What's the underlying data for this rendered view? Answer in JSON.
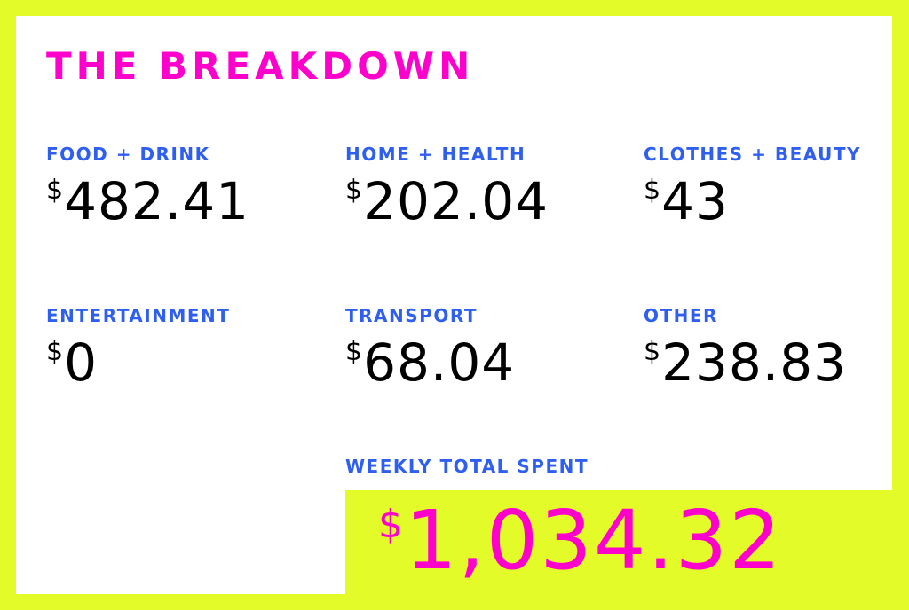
{
  "title": "THE BREAKDOWN",
  "currency_symbol": "$",
  "categories": [
    {
      "label": "FOOD + DRINK",
      "amount": "482.41"
    },
    {
      "label": "HOME + HEALTH",
      "amount": "202.04"
    },
    {
      "label": "CLOTHES + BEAUTY",
      "amount": "43"
    },
    {
      "label": "ENTERTAINMENT",
      "amount": "0"
    },
    {
      "label": "TRANSPORT",
      "amount": "68.04"
    },
    {
      "label": "OTHER",
      "amount": "238.83"
    }
  ],
  "total": {
    "label": "WEEKLY TOTAL SPENT",
    "amount": "1,034.32"
  },
  "colors": {
    "background": "#e4fb2a",
    "title": "#ff00cc",
    "label": "#2f5ff0",
    "amount": "#000000"
  }
}
